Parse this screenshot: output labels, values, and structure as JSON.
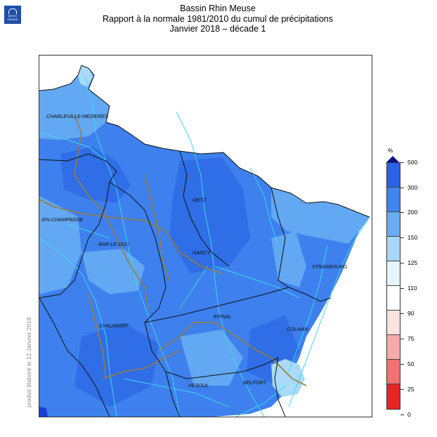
{
  "logo": {
    "text_line1": "METEO",
    "text_line2": "FRANCE"
  },
  "title": {
    "line1": "Bassin Rhin Meuse",
    "line2": "Rapport à la normale 1981/2010 du cumul de précipitations",
    "line3": "Janvier 2018 – décade 1"
  },
  "credit": "produit élaboré le 12 Janvier 2018",
  "legend": {
    "unit": "%",
    "tip_color": "#0b0f8c",
    "ticks": [
      "500",
      "300",
      "200",
      "150",
      "125",
      "110",
      "90",
      "75",
      "50",
      "25",
      "0"
    ],
    "colors": [
      "#1336e0",
      "#2a62ea",
      "#3f85ee",
      "#68acf2",
      "#a7d7f8",
      "#e6f5fc",
      "#ffffff",
      "#fde2e2",
      "#f8aaaa",
      "#f27272",
      "#e82424"
    ]
  },
  "map": {
    "colors": {
      "base": "#3d80ee",
      "dark": "#2f6ee6",
      "light": "#62a8f2",
      "pale": "#a9dbf8",
      "river": "#3fd6f2",
      "canal": "#9b7b3c",
      "border": "#111111"
    },
    "cities": [
      {
        "name": "CHARLEVILLE-MEZIERES"
      },
      {
        "name": "METZ"
      },
      {
        "name": "-EN-CHAMPAGNE"
      },
      {
        "name": "BAR-LE-DUC"
      },
      {
        "name": "NANCY"
      },
      {
        "name": "STRASBOURG"
      },
      {
        "name": "CHAUMONT"
      },
      {
        "name": "EPINAL"
      },
      {
        "name": "COLMAR"
      },
      {
        "name": "BELFORT"
      },
      {
        "name": "VESOUL"
      }
    ]
  }
}
